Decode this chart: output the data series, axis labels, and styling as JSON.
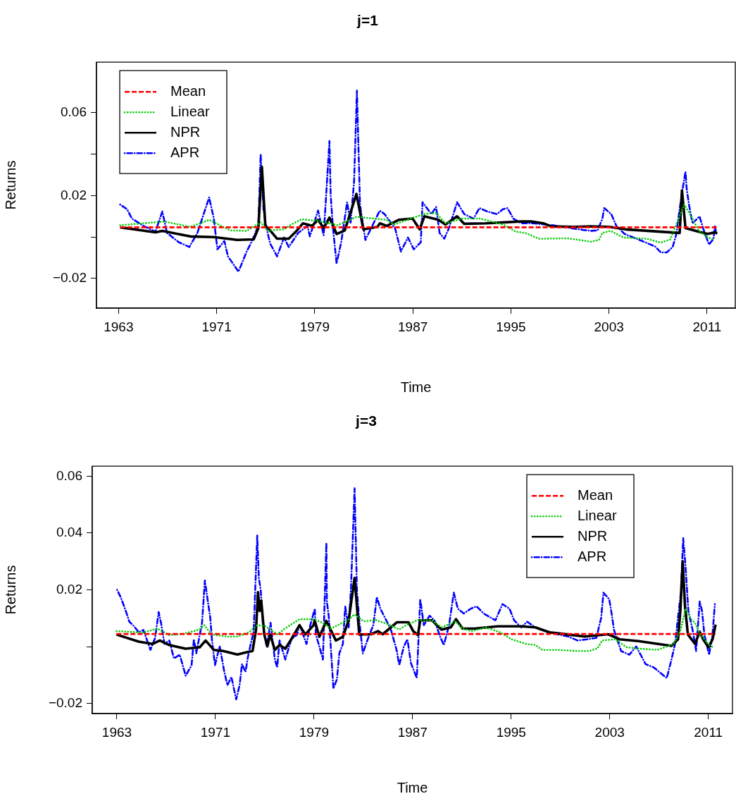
{
  "chart_data": [
    {
      "type": "line",
      "title": "j=1",
      "xlabel": "Time",
      "ylabel": "Returns",
      "legend": "top left",
      "grid": false,
      "xlim": [
        1961.2,
        2013.3
      ],
      "xticks": [
        1963,
        1971,
        1979,
        1987,
        1995,
        2003,
        2011
      ],
      "ylim": [
        -0.0343,
        0.0844
      ],
      "yticks": [
        {
          "value": -0.02,
          "label": "−0.02"
        },
        {
          "value": 0,
          "label": null
        },
        0.02,
        {
          "value": 0.04,
          "label": null
        },
        0.06
      ],
      "series": [
        {
          "name": "Mean",
          "color": "#ff0000",
          "line_style": "dashed",
          "x": [
            1963.13,
            2011.82
          ],
          "values": [
            0.0047,
            0.0047
          ]
        },
        {
          "name": "Linear",
          "color": "#00cd00",
          "line_style": "dotted",
          "x": [
            1963.13,
            1966.76,
            1968.86,
            1970.39,
            1972.11,
            1973.45,
            1974.59,
            1975.16,
            1976.5,
            1977.07,
            1977.93,
            1979.37,
            1980.87,
            1982.4,
            1983.55,
            1984.88,
            1985.46,
            1986.79,
            1987.94,
            1988.9,
            1989.66,
            1991.0,
            1992.52,
            1994.43,
            1995.39,
            1996.15,
            1997.3,
            1999.59,
            2000.83,
            2001.5,
            2002.17,
            2002.46,
            2003.12,
            2004.17,
            2006.09,
            2007.23,
            2008.0,
            2009.14,
            2009.71,
            2010.29,
            2011.05,
            2011.63
          ],
          "values": [
            0.0057,
            0.0075,
            0.0049,
            0.0083,
            0.0032,
            0.003,
            0.0071,
            0.0032,
            0.0037,
            0.006,
            0.0086,
            0.0077,
            0.0057,
            0.0098,
            0.0091,
            0.0083,
            0.006,
            0.0089,
            0.0111,
            0.0117,
            0.0066,
            0.0089,
            0.0089,
            0.0059,
            0.0026,
            0.002,
            -0.0008,
            -0.0006,
            -0.0016,
            -0.0023,
            -0.0014,
            0.002,
            0.003,
            -0.0002,
            -0.0008,
            -0.0027,
            -0.0011,
            0.0157,
            0.01,
            0.0032,
            -0.0002,
            -0.0014
          ]
        },
        {
          "name": "NPR",
          "color": "#000000",
          "line_style": "solid",
          "x": [
            1963.13,
            1966.0,
            1966.57,
            1968.86,
            1970.77,
            1972.68,
            1974.02,
            1974.4,
            1974.69,
            1974.97,
            1975.45,
            1975.93,
            1976.88,
            1977.46,
            1978.03,
            1978.79,
            1979.27,
            1979.73,
            1980.2,
            1980.78,
            1981.45,
            1982.4,
            1982.97,
            1984.12,
            1984.31,
            1984.88,
            1985.84,
            1986.98,
            1987.56,
            1987.94,
            1989.09,
            1989.66,
            1990.61,
            1991.19,
            1992.91,
            1995.77,
            1996.73,
            1997.68,
            1998.25,
            2000.16,
            2001.5,
            2003.03,
            2004.37,
            2008.76,
            2008.95,
            2009.24,
            2010.29,
            2011.05,
            2011.63,
            2011.82
          ],
          "values": [
            0.0047,
            0.0023,
            0.003,
            0.0003,
            0,
            -0.0014,
            -0.0011,
            0.0043,
            0.0338,
            0.0054,
            0.0026,
            -0.0008,
            -0.0008,
            0.0026,
            0.0066,
            0.0054,
            0.0083,
            0.0043,
            0.0094,
            0.0015,
            0.0032,
            0.0208,
            0.0037,
            0.0049,
            0.0066,
            0.0054,
            0.0083,
            0.0089,
            0.0037,
            0.01,
            0.0083,
            0.006,
            0.01,
            0.0064,
            0.0066,
            0.0075,
            0.0075,
            0.0066,
            0.0052,
            0.0049,
            0.0052,
            0.0049,
            0.0037,
            0.002,
            0.0225,
            0.0043,
            0.0026,
            0.0015,
            0.0023,
            0.0018
          ]
        },
        {
          "name": "APR",
          "color": "#0000ff",
          "line_style": "dashdot",
          "x": [
            1963.13,
            1963.7,
            1964.09,
            1965.04,
            1966.0,
            1966.57,
            1966.95,
            1967.91,
            1968.77,
            1969.43,
            1970.39,
            1970.77,
            1971.06,
            1971.63,
            1971.92,
            1972.78,
            1973.45,
            1973.83,
            1974.4,
            1974.59,
            1974.82,
            1975.07,
            1975.36,
            1975.93,
            1976.5,
            1976.88,
            1977.65,
            1978.41,
            1978.6,
            1979.27,
            1979.73,
            1980.2,
            1980.3,
            1980.49,
            1980.78,
            1981.16,
            1981.64,
            1981.92,
            1982.21,
            1982.44,
            1982.59,
            1982.69,
            1983.13,
            1983.74,
            1984.31,
            1984.69,
            1985.55,
            1986.03,
            1986.6,
            1987.08,
            1987.65,
            1987.79,
            1988.51,
            1988.9,
            1989.18,
            1989.56,
            1989.95,
            1990.61,
            1991.19,
            1991.95,
            1992.43,
            1993.1,
            1993.86,
            1994.34,
            1994.72,
            1995.2,
            1995.87,
            1996.82,
            1998.44,
            2000.55,
            2001.5,
            2002.07,
            2002.46,
            2002.61,
            2003.18,
            2003.6,
            2004.27,
            2005.7,
            2006.18,
            2006.75,
            2007.23,
            2007.71,
            2008.19,
            2008.47,
            2008.76,
            2008.95,
            2009.24,
            2009.33,
            2009.52,
            2009.81,
            2010.38,
            2010.67,
            2011.15,
            2011.53,
            2011.63,
            2011.78
          ],
          "values": [
            0.0157,
            0.0134,
            0.0089,
            0.0054,
            0.0026,
            0.0123,
            0.002,
            -0.0025,
            -0.0048,
            0.002,
            0.0191,
            0.0089,
            -0.0059,
            -0.0019,
            -0.0093,
            -0.0167,
            -0.007,
            -0.0025,
            0.0054,
            0.0401,
            0.0134,
            0.0043,
            -0.0031,
            -0.0093,
            -0.0002,
            -0.0048,
            0.002,
            0.0054,
            0.0003,
            0.0128,
            0.0009,
            0.0463,
            0.0202,
            0.0043,
            -0.0127,
            -0.0025,
            0.0168,
            0.0066,
            0.027,
            0.0707,
            0.0384,
            0.0157,
            -0.0014,
            0.006,
            0.0128,
            0.0111,
            0.0043,
            -0.007,
            -0.0002,
            -0.0059,
            -0.0025,
            0.0168,
            0.0111,
            0.0145,
            0.002,
            -0.0008,
            0.0043,
            0.0168,
            0.0111,
            0.0089,
            0.014,
            0.0123,
            0.0111,
            0.0134,
            0.014,
            0.0089,
            0.0066,
            0.0066,
            0.0057,
            0.0037,
            0.003,
            0.0032,
            0.0089,
            0.014,
            0.0111,
            0.0054,
            0.0015,
            -0.0019,
            -0.0031,
            -0.0045,
            -0.0074,
            -0.0074,
            -0.0048,
            0.0009,
            0.0134,
            0.0213,
            0.0316,
            0.0236,
            0.0157,
            0.0066,
            0.01,
            0.0043,
            -0.0036,
            -0.0008,
            0.0054,
            0.0009
          ]
        }
      ]
    },
    {
      "type": "line",
      "title": "j=3",
      "xlabel": "Time",
      "ylabel": "Returns",
      "legend": "top right",
      "grid": false,
      "xlim": [
        1961.0,
        2012.96
      ],
      "xticks": [
        1963,
        1971,
        1979,
        1987,
        1995,
        2003,
        2011
      ],
      "ylim": [
        -0.0235,
        0.0635
      ],
      "yticks": [
        {
          "value": -0.02,
          "label": "−0.02"
        },
        {
          "value": 0,
          "label": null
        },
        0.02,
        0.04,
        0.06
      ],
      "series": [
        {
          "name": "Mean",
          "color": "#ff0000",
          "line_style": "dashed",
          "x": [
            1962.96,
            2011.59
          ],
          "values": [
            0.0045,
            0.0045
          ]
        },
        {
          "name": "Linear",
          "color": "#00cd00",
          "line_style": "dotted",
          "x": [
            1962.96,
            1965.15,
            1966.29,
            1967.25,
            1968.39,
            1969.72,
            1970.1,
            1970.67,
            1972.1,
            1972.77,
            1973.72,
            1974.39,
            1975.06,
            1976.01,
            1976.77,
            1977.82,
            1978.96,
            1979.62,
            1980.38,
            1981.72,
            1982.29,
            1983.05,
            1984.0,
            1984.96,
            1985.91,
            1986.48,
            1987.43,
            1988.57,
            1989.34,
            1990.48,
            1991.05,
            1991.81,
            1992.96,
            1994.1,
            1995.05,
            1996.19,
            1996.96,
            1997.53,
            1998.87,
            2000.2,
            2001.34,
            2002.01,
            2002.39,
            2003.44,
            2004.39,
            2005.53,
            2006.87,
            2008.2,
            2008.77,
            2009.15,
            2009.53,
            2009.92,
            2010.3,
            2011.06,
            2011.44
          ],
          "values": [
            0.0055,
            0.005,
            0.0064,
            0.0041,
            0.0045,
            0.0061,
            0.0076,
            0.0043,
            0.0035,
            0.0036,
            0.0051,
            0.0076,
            0.0072,
            0.0044,
            0.0068,
            0.0097,
            0.0097,
            0.0086,
            0.0064,
            0.0093,
            0.0114,
            0.0089,
            0.0094,
            0.008,
            0.0061,
            0.0076,
            0.0094,
            0.0093,
            0.0068,
            0.0089,
            0.0064,
            0.0055,
            0.0068,
            0.0051,
            0.0026,
            0.001,
            0.0006,
            -0.0011,
            -0.0011,
            -0.0015,
            -0.0015,
            -0.0005,
            0.0022,
            0.0026,
            -0.0002,
            -0.0007,
            -0.0011,
            0.001,
            0.006,
            0.0134,
            0.01,
            0.0084,
            0.0047,
            0.0006,
            -0.0003
          ]
        },
        {
          "name": "NPR",
          "color": "#000000",
          "line_style": "solid",
          "x": [
            1962.96,
            1964.77,
            1965.91,
            1966.48,
            1967.25,
            1968.58,
            1969.72,
            1970.2,
            1970.86,
            1971.63,
            1972.77,
            1973.53,
            1974.01,
            1974.29,
            1974.45,
            1974.58,
            1974.71,
            1974.96,
            1975.21,
            1975.44,
            1975.82,
            1976.2,
            1976.67,
            1977.15,
            1977.82,
            1978.29,
            1978.96,
            1979.05,
            1979.43,
            1980.0,
            1980.77,
            1981.34,
            1981.81,
            1982.29,
            1982.67,
            1983.62,
            1984.19,
            1984.57,
            1985.72,
            1986.67,
            1987.05,
            1987.43,
            1987.62,
            1988.57,
            1989.34,
            1990.1,
            1990.52,
            1991.05,
            1992.0,
            1993.9,
            1995.81,
            1996.96,
            1998.11,
            1999.63,
            2000.96,
            2002.87,
            2003.82,
            2005.34,
            2008.01,
            2008.54,
            2008.73,
            2008.92,
            2009.11,
            2009.34,
            2009.92,
            2010.3,
            2010.58,
            2011.02,
            2011.34,
            2011.59
          ],
          "values": [
            0.0043,
            0.0018,
            0.001,
            0.0022,
            0.0006,
            -0.0007,
            -0.0002,
            0.0022,
            -0.0011,
            -0.0015,
            -0.0027,
            -0.0019,
            -0.0015,
            0.006,
            0.0192,
            0.0126,
            0.0163,
            0.0043,
            0.0001,
            0.0043,
            -0.0011,
            0.0006,
            -0.0007,
            0.0026,
            0.0076,
            0.0043,
            0.0076,
            0.0093,
            0.0035,
            0.0091,
            0.0022,
            0.0035,
            0.0093,
            0.0242,
            0.0043,
            0.0044,
            0.0055,
            0.0044,
            0.0086,
            0.0086,
            0.0055,
            0.0041,
            0.0093,
            0.0093,
            0.006,
            0.0068,
            0.0097,
            0.0064,
            0.0064,
            0.0072,
            0.0072,
            0.0068,
            0.0051,
            0.0043,
            0.0036,
            0.0044,
            0.0026,
            0.002,
            0.0003,
            0.0026,
            0.0126,
            0.03,
            0.0142,
            0.0043,
            0.001,
            0.0053,
            0.0026,
            -0.0002,
            0.0026,
            0.0078
          ]
        },
        {
          "name": "APR",
          "color": "#0000ff",
          "line_style": "dashdot",
          "x": [
            1963.02,
            1963.34,
            1963.72,
            1964.01,
            1964.39,
            1964.77,
            1965.15,
            1965.72,
            1966.1,
            1966.39,
            1966.58,
            1966.86,
            1967.25,
            1967.63,
            1968.1,
            1968.58,
            1969.06,
            1969.25,
            1969.44,
            1969.91,
            1970.14,
            1970.33,
            1970.58,
            1970.71,
            1970.96,
            1971.34,
            1971.72,
            1971.97,
            1972.29,
            1972.68,
            1972.96,
            1973.15,
            1973.44,
            1973.63,
            1974.1,
            1974.39,
            1974.52,
            1974.67,
            1974.86,
            1975.15,
            1975.47,
            1975.82,
            1976.01,
            1976.2,
            1976.67,
            1977.15,
            1977.63,
            1977.82,
            1978.39,
            1978.67,
            1979.06,
            1979.15,
            1979.43,
            1979.72,
            1980.0,
            1980.04,
            1980.19,
            1980.38,
            1980.57,
            1980.86,
            1981.05,
            1981.34,
            1981.53,
            1981.81,
            1982.0,
            1982.29,
            1982.38,
            1982.48,
            1982.67,
            1982.96,
            1983.43,
            1983.81,
            1984.1,
            1984.38,
            1984.86,
            1985.24,
            1985.72,
            1985.91,
            1986.29,
            1986.58,
            1986.86,
            1987.34,
            1987.62,
            1987.91,
            1988.38,
            1988.77,
            1989.24,
            1989.53,
            1989.96,
            1990.34,
            1990.67,
            1991.15,
            1991.72,
            1992.19,
            1992.77,
            1993.72,
            1994.29,
            1994.86,
            1995.24,
            1995.82,
            1996.3,
            1996.96,
            1998.11,
            1999.63,
            2000.39,
            2001.15,
            2001.91,
            2002.3,
            2002.49,
            2002.96,
            2003.15,
            2003.34,
            2003.92,
            2004.58,
            2005.15,
            2005.91,
            2006.58,
            2007.25,
            2007.63,
            2008.01,
            2008.3,
            2008.49,
            2008.77,
            2008.96,
            2009.15,
            2009.38,
            2009.72,
            2010.01,
            2010.3,
            2010.49,
            2010.68,
            2011.06,
            2011.34,
            2011.53
          ],
          "values": [
            0.02,
            0.0171,
            0.0126,
            0.0088,
            0.0072,
            0.0051,
            0.0059,
            -0.0011,
            0.0031,
            0.0122,
            0.0084,
            0.001,
            0.0022,
            -0.0041,
            -0.0028,
            -0.0102,
            -0.0065,
            0.0026,
            -0.0023,
            0.0084,
            0.0233,
            0.0175,
            0.0101,
            0.0026,
            -0.0065,
            0.0002,
            -0.0089,
            -0.0135,
            -0.0106,
            -0.0185,
            -0.0135,
            -0.0061,
            -0.0089,
            -0.0036,
            0.0055,
            0.0391,
            0.0242,
            0.02,
            0.0076,
            0.0001,
            0.0084,
            -0.0045,
            -0.0073,
            0.0022,
            -0.0045,
            0.0026,
            0.0043,
            0.0076,
            0.001,
            0.0072,
            0.0134,
            0.0043,
            0.0001,
            -0.0045,
            0.0366,
            0.0159,
            0.0109,
            -0.0015,
            -0.0147,
            -0.0114,
            -0.0023,
            0.001,
            0.0142,
            0.0068,
            0.0209,
            0.0557,
            0.0391,
            0.02,
            0.0093,
            -0.0023,
            0.0035,
            0.0076,
            0.0175,
            0.0134,
            0.0093,
            0.006,
            -0.0015,
            -0.0065,
            0.0001,
            0.0026,
            -0.0057,
            -0.011,
            0.0167,
            0.0076,
            0.0109,
            0.0093,
            0.0035,
            0.0006,
            0.0076,
            0.019,
            0.0134,
            0.0117,
            0.0134,
            0.0142,
            0.0117,
            0.0093,
            0.015,
            0.0134,
            0.0093,
            0.0068,
            0.0088,
            0.0068,
            0.005,
            0.0036,
            0.0022,
            0.0026,
            0.0031,
            0.0101,
            0.019,
            0.0167,
            0.0117,
            0.006,
            -0.0015,
            -0.0028,
            0.0001,
            -0.0061,
            -0.0073,
            -0.0097,
            -0.011,
            -0.0045,
            0.001,
            0.0084,
            0.019,
            0.0382,
            0.0283,
            0.0126,
            0.006,
            -0.0015,
            0.0159,
            0.0126,
            0.0043,
            -0.0028,
            0.0043,
            0.015
          ]
        }
      ]
    }
  ]
}
